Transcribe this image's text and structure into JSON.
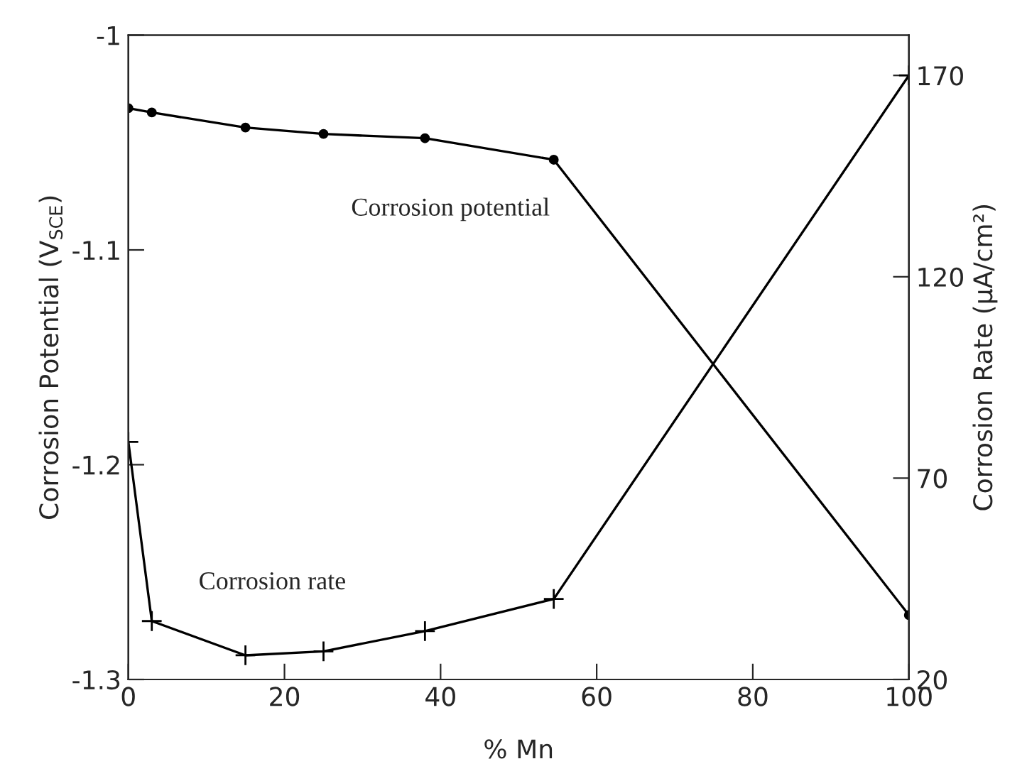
{
  "chart_data": {
    "type": "line",
    "xlabel": "% Mn",
    "ylabel": "Corrosion Potential (V$_{SCE}$)",
    "y2label": "Corrosion Rate (μA/cm²)",
    "series": [
      {
        "x": [
          0,
          3,
          15,
          25,
          38,
          54.5,
          100
        ],
        "values": [
          -1.034,
          -1.036,
          -1.043,
          -1.046,
          -1.048,
          -1.058,
          -1.27
        ],
        "color": "#000000",
        "marker": "circle"
      },
      {
        "x": [
          0,
          3,
          15,
          25,
          38,
          54.5,
          100
        ],
        "values": [
          79,
          34.5,
          26,
          27,
          32,
          40,
          170
        ],
        "color": "#000000",
        "marker": "cross",
        "axis": "y2"
      }
    ],
    "xlim": [
      0,
      100
    ],
    "xticks": [
      0,
      20,
      40,
      60,
      80,
      100
    ],
    "ylim": [
      -1.3,
      -1
    ],
    "yticks": [
      {
        "value": -1.3,
        "label": "-1.3"
      },
      {
        "value": -1.2,
        "label": "-1.2"
      },
      {
        "value": -1.1,
        "label": "-1.1"
      },
      {
        "value": -1,
        "label": "-1"
      }
    ],
    "y2lim": [
      20,
      180
    ],
    "y2ticks": [
      20,
      70,
      120,
      170
    ],
    "annotations": [
      "Corrosion potential",
      "Corrosion rate"
    ],
    "grid": false,
    "legend": false,
    "line_style": "solid"
  }
}
